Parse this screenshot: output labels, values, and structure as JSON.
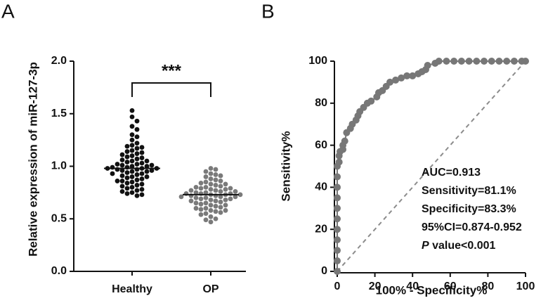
{
  "chart_data": [
    {
      "type": "strip",
      "label": "A",
      "y_label": "Relative expression of miR-127-3p",
      "ylim": [
        0,
        2
      ],
      "yticks": [
        {
          "value": 0,
          "label": "0.0"
        },
        {
          "value": 0.5,
          "label": "0.5"
        },
        {
          "value": 1,
          "label": "1.0"
        },
        {
          "value": 1.5,
          "label": "1.5"
        },
        {
          "value": 2,
          "label": "2.0"
        }
      ],
      "significance": "***",
      "series": [
        {
          "name": "Healthy",
          "color": "#111111",
          "median": 0.98,
          "values": [
            1.53,
            1.47,
            1.43,
            1.38,
            1.35,
            1.3,
            1.28,
            1.25,
            1.22,
            1.2,
            1.19,
            1.18,
            1.17,
            1.15,
            1.14,
            1.12,
            1.11,
            1.1,
            1.09,
            1.08,
            1.07,
            1.06,
            1.05,
            1.05,
            1.04,
            1.03,
            1.02,
            1.02,
            1.01,
            1.0,
            1.0,
            0.99,
            0.99,
            0.98,
            0.98,
            0.98,
            0.97,
            0.97,
            0.96,
            0.96,
            0.95,
            0.95,
            0.94,
            0.93,
            0.93,
            0.92,
            0.91,
            0.9,
            0.9,
            0.89,
            0.88,
            0.87,
            0.86,
            0.86,
            0.85,
            0.84,
            0.83,
            0.82,
            0.81,
            0.8,
            0.79,
            0.78,
            0.77,
            0.76,
            0.75,
            0.74,
            0.73,
            0.72,
            1.13,
            1.01
          ]
        },
        {
          "name": "OP",
          "color": "#7a7a7a",
          "median": 0.73,
          "values": [
            0.98,
            0.97,
            0.95,
            0.93,
            0.92,
            0.9,
            0.88,
            0.87,
            0.86,
            0.85,
            0.84,
            0.83,
            0.82,
            0.81,
            0.8,
            0.8,
            0.79,
            0.78,
            0.78,
            0.77,
            0.77,
            0.76,
            0.76,
            0.75,
            0.75,
            0.74,
            0.74,
            0.73,
            0.73,
            0.73,
            0.72,
            0.72,
            0.71,
            0.71,
            0.7,
            0.7,
            0.69,
            0.69,
            0.68,
            0.68,
            0.67,
            0.66,
            0.65,
            0.65,
            0.64,
            0.63,
            0.62,
            0.61,
            0.6,
            0.59,
            0.58,
            0.57,
            0.56,
            0.55,
            0.54,
            0.52,
            0.5,
            0.49,
            0.47,
            0.91,
            0.83,
            0.79,
            0.74,
            0.71,
            0.67,
            0.63,
            0.6,
            0.58
          ]
        }
      ]
    },
    {
      "type": "line",
      "label": "B",
      "x_label": "100% - Specificity%",
      "y_label": "Sensitivity%",
      "xlim": [
        0,
        100
      ],
      "ylim": [
        0,
        100
      ],
      "xticks": [
        0,
        20,
        40,
        60,
        80,
        100
      ],
      "yticks": [
        0,
        20,
        40,
        60,
        80,
        100
      ],
      "reference_color": "#8c8c8c",
      "x": [
        0,
        0,
        0,
        0,
        0,
        0,
        0,
        0,
        0,
        0,
        0,
        1,
        1,
        1.5,
        3,
        3,
        4,
        5,
        7,
        8,
        10,
        11,
        12,
        14,
        16,
        18,
        21,
        22,
        24,
        26,
        28,
        31,
        34,
        37,
        40,
        43,
        45,
        47,
        48,
        52,
        54,
        58,
        62,
        66,
        70,
        74,
        78,
        82,
        86,
        90,
        94,
        98,
        100
      ],
      "series": [
        {
          "color": "#777777",
          "values": [
            0,
            5,
            10,
            15,
            20,
            25,
            30,
            35,
            40,
            45,
            50,
            52,
            55,
            57,
            58,
            60,
            62,
            66,
            68,
            70,
            72,
            74,
            76,
            78,
            80,
            81,
            83,
            85,
            86,
            88,
            90,
            91,
            92,
            93,
            93,
            94,
            95,
            96,
            98,
            99,
            100,
            100,
            100,
            100,
            100,
            100,
            100,
            100,
            100,
            100,
            100,
            100,
            100
          ]
        }
      ],
      "annotations": [
        "AUC=0.913",
        "Sensitivity=81.1%",
        "Specificity=83.3%",
        "95%CI=0.874-0.952",
        [
          "P",
          " value<0.001"
        ]
      ]
    }
  ]
}
